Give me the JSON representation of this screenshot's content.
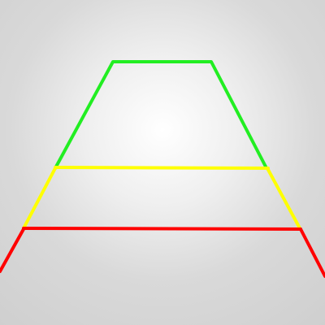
{
  "zones": [
    {
      "name": "far-zone",
      "color": "#22ee22"
    },
    {
      "name": "mid-zone",
      "color": "#ffff00"
    },
    {
      "name": "near-zone",
      "color": "#ff0000"
    }
  ]
}
